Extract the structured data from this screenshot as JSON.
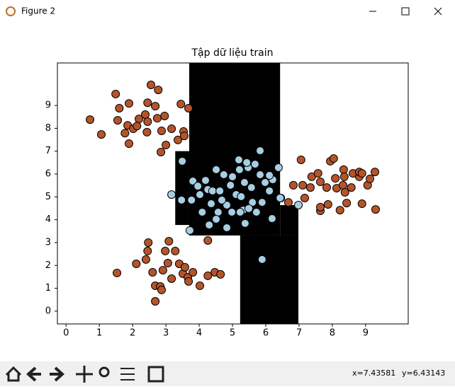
{
  "window": {
    "title": "Figure 2",
    "status_x": "x=7.43581",
    "status_y": "y=6.43143"
  },
  "chart_data": {
    "type": "scatter",
    "title": "Tập dữ liệu train",
    "xlim": [
      -0.26,
      10.28
    ],
    "ylim": [
      -0.56,
      10.86
    ],
    "xticks": [
      0,
      1,
      2,
      3,
      4,
      5,
      6,
      7,
      8,
      9
    ],
    "yticks": [
      0,
      1,
      2,
      3,
      4,
      5,
      6,
      7,
      8,
      9
    ],
    "regions": [
      {
        "color": "#000000",
        "x": [
          3.7,
          6.43
        ],
        "y": [
          3.31,
          10.86
        ]
      },
      {
        "color": "#000000",
        "x": [
          3.28,
          3.7
        ],
        "y": [
          3.77,
          7.0
        ]
      },
      {
        "color": "#000000",
        "x": [
          5.23,
          6.98
        ],
        "y": [
          -0.56,
          3.31
        ]
      },
      {
        "color": "#000000",
        "x": [
          6.43,
          6.98
        ],
        "y": [
          3.31,
          4.64
        ]
      }
    ],
    "series": [
      {
        "color": "#b5542a",
        "x": [
          1.49,
          2.55,
          2.77,
          1.6,
          1.89,
          2.45,
          2.68,
          3.45,
          3.68,
          0.72,
          1.06,
          1.55,
          1.85,
          2.19,
          2.38,
          2.45,
          2.74,
          2.96,
          2.02,
          1.77,
          1.89,
          2.43,
          2.87,
          3.17,
          3.53,
          3.0,
          2.85,
          3.36,
          3.55,
          2.13,
          1.53,
          2.11,
          2.47,
          2.45,
          2.4,
          2.6,
          2.68,
          2.83,
          2.68,
          2.98,
          3.09,
          3.06,
          2.91,
          3.28,
          3.4,
          3.51,
          3.17,
          3.66,
          3.81,
          3.68,
          4.02,
          4.26,
          4.26,
          4.47,
          4.64,
          2.87,
          3.57,
          7.06,
          6.83,
          7.11,
          7.34,
          7.38,
          7.57,
          7.64,
          7.83,
          7.94,
          8.04,
          8.09,
          8.13,
          8.34,
          8.36,
          8.32,
          8.38,
          8.43,
          8.23,
          7.87,
          7.64,
          7.64,
          8.62,
          8.81,
          8.81,
          9.06,
          9.13,
          9.28,
          8.89,
          9.3,
          8.57,
          8.89,
          7.17,
          6.68,
          6.45
        ],
        "y": [
          9.5,
          9.9,
          9.68,
          8.88,
          9.09,
          9.12,
          8.97,
          9.06,
          8.88,
          8.38,
          7.73,
          8.35,
          8.13,
          8.41,
          8.6,
          8.29,
          8.44,
          8.54,
          7.98,
          7.79,
          7.33,
          7.83,
          7.89,
          7.98,
          7.86,
          7.27,
          6.96,
          7.49,
          7.67,
          8.1,
          1.67,
          2.07,
          3.0,
          2.63,
          2.26,
          1.7,
          1.11,
          1.08,
          0.43,
          2.63,
          3.06,
          2.1,
          1.79,
          2.63,
          2.07,
          1.64,
          1.42,
          1.48,
          1.7,
          1.3,
          1.11,
          3.09,
          1.55,
          1.7,
          1.61,
          0.93,
          1.92,
          6.62,
          5.51,
          5.51,
          5.41,
          5.88,
          6.03,
          5.66,
          5.41,
          6.56,
          6.68,
          5.81,
          5.38,
          6.19,
          5.88,
          5.51,
          5.2,
          4.73,
          4.42,
          4.67,
          4.39,
          4.55,
          6.03,
          5.88,
          6.09,
          5.51,
          5.79,
          6.09,
          4.7,
          4.45,
          5.41,
          6.03,
          4.95,
          4.76,
          4.95
        ]
      },
      {
        "color": "#a6cee3",
        "x": [
          5.89,
          3.72,
          3.49,
          3.17,
          5.83,
          6.38,
          6.19,
          4.83,
          6.98,
          3.81,
          3.47,
          3.77,
          4.02,
          4.26,
          4.36,
          4.51,
          4.74,
          4.94,
          4.83,
          4.57,
          4.3,
          5.11,
          5.19,
          5.21,
          5.47,
          5.36,
          5.57,
          5.26,
          5.32,
          5.6,
          5.38,
          5.72,
          5.89,
          6.11,
          6.21,
          6.11,
          5.83,
          4.98,
          4.68,
          4.09,
          4.19,
          4.4,
          4.62,
          5.68,
          5.43,
          5.0,
          5.49,
          5.23,
          5.98,
          6.43,
          4.51,
          3.96
        ],
        "y": [
          2.26,
          3.53,
          6.56,
          5.1,
          7.02,
          6.28,
          4.05,
          3.65,
          4.64,
          5.69,
          4.86,
          4.86,
          5.1,
          5.32,
          4.7,
          6.19,
          5.97,
          5.51,
          4.64,
          4.33,
          3.77,
          5.1,
          6.62,
          6.19,
          6.28,
          5.63,
          5.41,
          5.01,
          4.42,
          4.76,
          3.84,
          4.33,
          4.76,
          5.26,
          5.75,
          5.94,
          5.97,
          4.33,
          4.86,
          4.33,
          5.72,
          5.26,
          5.26,
          6.43,
          6.5,
          5.88,
          4.49,
          4.33,
          5.63,
          4.95,
          4.02,
          5.47
        ]
      }
    ]
  }
}
